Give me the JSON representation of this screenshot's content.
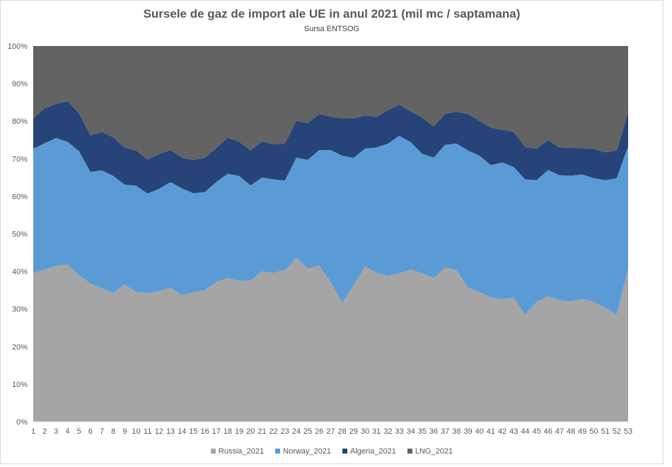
{
  "chart_data": {
    "type": "area",
    "stacking": "percent",
    "title": "Sursele de gaz de import ale UE in anul 2021 (mil mc / saptamana)",
    "subtitle": "Sursa ENTSOG",
    "xlabel": "",
    "ylabel": "",
    "ylim": [
      0,
      100
    ],
    "y_ticks": [
      "0%",
      "10%",
      "20%",
      "30%",
      "40%",
      "50%",
      "60%",
      "70%",
      "80%",
      "90%",
      "100%"
    ],
    "grid": false,
    "legend_position": "bottom",
    "x": [
      "1",
      "2",
      "3",
      "4",
      "5",
      "6",
      "7",
      "8",
      "9",
      "10",
      "11",
      "12",
      "13",
      "14",
      "15",
      "16",
      "17",
      "18",
      "19",
      "20",
      "21",
      "22",
      "23",
      "24",
      "25",
      "26",
      "27",
      "28",
      "29",
      "30",
      "31",
      "32",
      "33",
      "34",
      "35",
      "36",
      "37",
      "38",
      "39",
      "40",
      "41",
      "42",
      "43",
      "44",
      "45",
      "46",
      "47",
      "48",
      "49",
      "50",
      "51",
      "52",
      "53"
    ],
    "series": [
      {
        "name": "Russia_2021",
        "color": "#a5a5a5",
        "values": [
          39.5,
          40.5,
          41.5,
          41.8,
          39.0,
          36.8,
          35.5,
          34.3,
          36.5,
          34.5,
          34.2,
          34.7,
          35.7,
          33.7,
          34.4,
          35.0,
          37.2,
          38.2,
          37.5,
          37.6,
          40.0,
          39.6,
          40.4,
          43.6,
          40.8,
          41.5,
          37.2,
          31.6,
          36.3,
          41.3,
          39.6,
          38.9,
          39.5,
          40.5,
          39.5,
          38.2,
          41.0,
          40.3,
          35.7,
          34.5,
          33.1,
          32.6,
          33.0,
          28.5,
          31.9,
          33.4,
          32.3,
          32.0,
          32.7,
          31.8,
          30.3,
          28.6,
          40.7
        ]
      },
      {
        "name": "Norway_2021",
        "color": "#5b9bd5",
        "values": [
          33.2,
          33.6,
          34.0,
          32.7,
          33.0,
          29.7,
          31.4,
          31.1,
          26.6,
          28.3,
          26.5,
          27.3,
          28.1,
          28.4,
          26.4,
          26.1,
          26.6,
          27.8,
          27.9,
          25.3,
          25.0,
          24.9,
          23.8,
          26.7,
          28.9,
          30.8,
          35.1,
          39.2,
          33.9,
          31.4,
          33.4,
          35.1,
          36.6,
          33.9,
          31.8,
          32.1,
          32.7,
          33.7,
          36.5,
          36.3,
          35.2,
          36.4,
          34.8,
          36.0,
          32.4,
          33.6,
          33.3,
          33.5,
          33.1,
          33.0,
          34.0,
          36.2,
          32.6
        ]
      },
      {
        "name": "Algeria_2021",
        "color": "#264478",
        "values": [
          8.0,
          9.3,
          9.1,
          10.8,
          10.1,
          9.7,
          10.2,
          10.3,
          9.8,
          9.4,
          9.0,
          9.3,
          8.5,
          8.2,
          8.9,
          9.1,
          9.0,
          9.6,
          9.1,
          9.3,
          9.6,
          9.4,
          9.8,
          9.8,
          9.8,
          9.6,
          8.9,
          9.9,
          10.5,
          8.8,
          8.1,
          8.9,
          8.3,
          8.2,
          9.6,
          8.3,
          8.2,
          8.5,
          9.7,
          9.3,
          10.0,
          8.7,
          9.3,
          8.6,
          8.4,
          7.9,
          7.4,
          7.4,
          7.0,
          7.8,
          7.4,
          7.4,
          8.9
        ]
      },
      {
        "name": "LNG_2021",
        "color": "#636363",
        "values": [
          19.3,
          16.6,
          15.4,
          14.7,
          17.9,
          23.8,
          22.9,
          24.3,
          27.1,
          27.8,
          30.3,
          28.7,
          27.7,
          29.7,
          30.3,
          29.8,
          27.2,
          24.4,
          25.5,
          27.8,
          25.4,
          26.1,
          26.0,
          19.9,
          20.5,
          18.1,
          18.8,
          19.3,
          19.3,
          18.5,
          18.9,
          17.1,
          15.6,
          17.4,
          19.1,
          21.4,
          18.1,
          17.5,
          18.1,
          19.9,
          21.7,
          22.3,
          22.9,
          26.9,
          27.3,
          25.1,
          27.0,
          27.1,
          27.2,
          27.4,
          28.3,
          27.8,
          17.8
        ]
      }
    ]
  }
}
